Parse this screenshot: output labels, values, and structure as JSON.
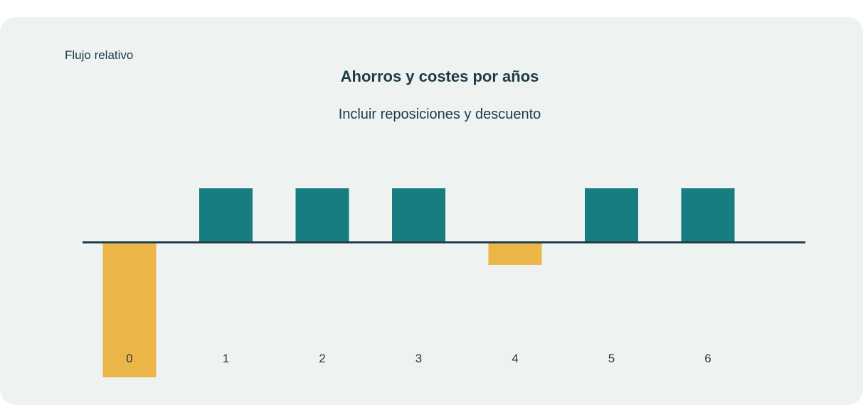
{
  "chart_data": {
    "type": "bar",
    "title": "Ahorros y costes por años",
    "subtitle": "Incluir reposiciones y descuento",
    "ylabel": "Flujo relativo",
    "xlabel": "",
    "categories": [
      "0",
      "1",
      "2",
      "3",
      "4",
      "5",
      "6"
    ],
    "values": [
      -2.5,
      1.0,
      1.0,
      1.0,
      -0.42,
      1.0,
      1.0
    ],
    "ylim": [
      -2.5,
      1.0
    ],
    "colors": {
      "positive": "#177d80",
      "negative": "#ebb647",
      "axis": "#1d3a48"
    },
    "grid": false,
    "legend": "none"
  }
}
